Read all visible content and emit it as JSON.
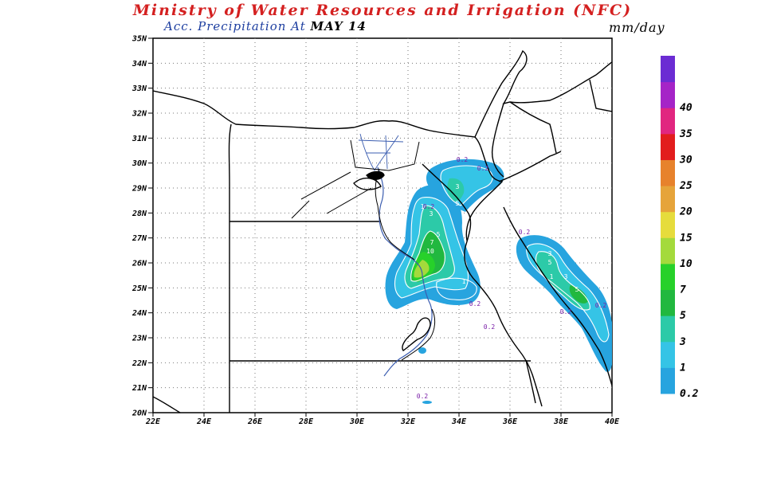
{
  "header": {
    "title": "Ministry of Water Resources and Irrigation (NFC)",
    "subtitle_label": "Acc. Precipitation  At",
    "subtitle_date": "MAY 14",
    "units": "mm/day"
  },
  "map": {
    "lat_labels": [
      "35N",
      "34N",
      "33N",
      "32N",
      "31N",
      "30N",
      "29N",
      "28N",
      "27N",
      "26N",
      "25N",
      "24N",
      "23N",
      "22N",
      "21N",
      "20N"
    ],
    "lon_labels": [
      "22E",
      "24E",
      "26E",
      "28E",
      "30E",
      "32E",
      "34E",
      "36E",
      "38E",
      "40E"
    ]
  },
  "legend": {
    "levels": [
      "0.2",
      "1",
      "3",
      "5",
      "7",
      "10",
      "15",
      "20",
      "25",
      "30",
      "35",
      "40"
    ],
    "colors": [
      "#27a4df",
      "#35c4e6",
      "#2ccaa8",
      "#21b83f",
      "#27d12a",
      "#a4da3c",
      "#e6dc3c",
      "#e6a43a",
      "#e7822c",
      "#e21d1d",
      "#e12680",
      "#a524c7",
      "#6b2cd3"
    ]
  },
  "contour_labels": [
    "0.2",
    "0.2",
    "3",
    "5",
    "1",
    "3",
    "5",
    "7",
    "10",
    "0.2",
    "1",
    "0.2",
    "0.2",
    "0.2",
    "0.2",
    "3",
    "5",
    "1",
    "3",
    "5",
    "0.2",
    "0.2"
  ]
}
